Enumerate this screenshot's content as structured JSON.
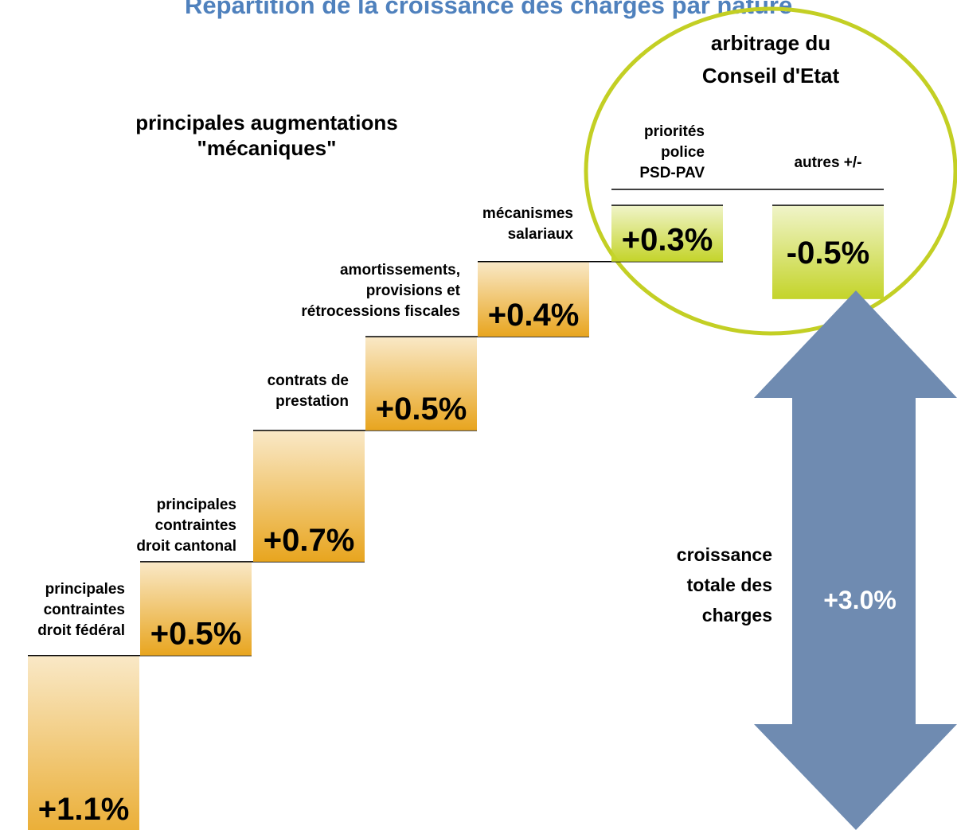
{
  "chart_data": {
    "type": "waterfall",
    "title": "Répartition de la croissance des charges par nature",
    "groups": [
      {
        "label": [
          "principales augmentations",
          "\"mécaniques\""
        ]
      },
      {
        "label": [
          "arbitrage du",
          "Conseil d'Etat"
        ]
      }
    ],
    "categories": [
      [
        "principales",
        "contraintes",
        "droit fédéral"
      ],
      [
        "principales",
        "contraintes",
        "droit cantonal"
      ],
      [
        "contrats de",
        "prestation"
      ],
      [
        "amortissements,",
        "provisions et",
        "rétrocessions fiscales"
      ],
      [
        "mécanismes",
        "salariaux"
      ],
      [
        "priorités",
        "police",
        "PSD-PAV"
      ],
      [
        "autres +/-"
      ]
    ],
    "values": [
      1.1,
      0.5,
      0.7,
      0.5,
      0.4,
      0.3,
      -0.5
    ],
    "value_labels": [
      "+1.1%",
      "+0.5%",
      "+0.7%",
      "+0.5%",
      "+0.4%",
      "+0.3%",
      "-0.5%"
    ],
    "colors": [
      "#e8a51f",
      "#e8a51f",
      "#e8a51f",
      "#e8a51f",
      "#e8a51f",
      "#c4d42a",
      "#c4d42a"
    ],
    "total": {
      "label": [
        "croissance",
        "totale des",
        "charges"
      ],
      "value": 3.0,
      "value_label": "+3.0%",
      "color": "#6f8bb1"
    },
    "circle_color": "#c3cf24",
    "title_color": "#4f81bd"
  }
}
